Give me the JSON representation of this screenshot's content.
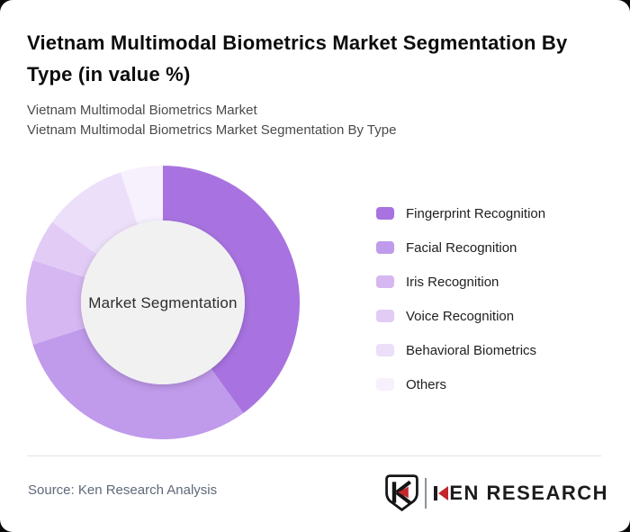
{
  "header": {
    "title": "Vietnam Multimodal Biometrics Market Segmentation By Type (in value %)",
    "subtitle_line1": "Vietnam Multimodal Biometrics Market",
    "subtitle_line2": "Vietnam Multimodal Biometrics Market Segmentation By Type"
  },
  "chart_data": {
    "type": "pie",
    "variant": "donut",
    "title": "Vietnam Multimodal Biometrics Market Segmentation By Type (in value %)",
    "center_label": "Market Segmentation",
    "categories": [
      "Fingerprint Recognition",
      "Facial Recognition",
      "Iris Recognition",
      "Voice Recognition",
      "Behavioral Biometrics",
      "Others"
    ],
    "values": [
      40,
      30,
      10,
      5,
      10,
      5
    ],
    "unit": "%",
    "colors": [
      "#a873e0",
      "#c09aeb",
      "#d6b7f1",
      "#e2ccf6",
      "#ecdff9",
      "#f7f0fd"
    ],
    "legend_position": "right",
    "start_angle_deg": 0,
    "inner_radius_ratio": 0.6,
    "center_fill": "#f1f1f2"
  },
  "footer": {
    "source": "Source: Ken Research Analysis",
    "logo": {
      "emblem_letter": "K",
      "wordmark": "KEN RESEARCH",
      "wordmark_rest": "EN RESEARCH",
      "accent_color": "#c4262c"
    }
  },
  "theme": {
    "accent": "#a873e0",
    "card_bg": "#ffffff",
    "page_bg": "#0a0a0a",
    "divider": "#e2e2e2"
  }
}
